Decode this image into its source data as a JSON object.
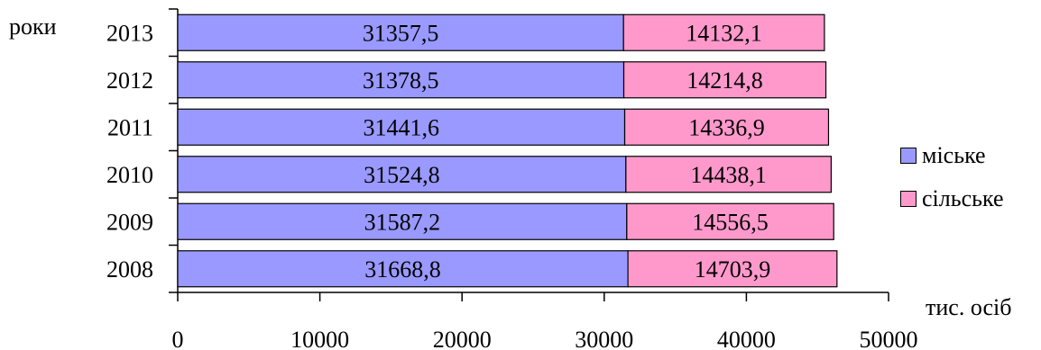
{
  "chart_data": {
    "type": "bar",
    "orientation": "horizontal",
    "stacked": true,
    "categories": [
      "2013",
      "2012",
      "2011",
      "2010",
      "2009",
      "2008"
    ],
    "series": [
      {
        "name": "міське",
        "color": "#9999ff",
        "values": [
          31357.5,
          31378.5,
          31441.6,
          31524.8,
          31587.2,
          31668.8
        ],
        "labels": [
          "31357,5",
          "31378,5",
          "31441,6",
          "31524,8",
          "31587,2",
          "31668,8"
        ]
      },
      {
        "name": "сільське",
        "color": "#ff99cc",
        "values": [
          14132.1,
          14214.8,
          14336.9,
          14438.1,
          14556.5,
          14703.9
        ],
        "labels": [
          "14132,1",
          "14214,8",
          "14336,9",
          "14438,1",
          "14556,5",
          "14703,9"
        ]
      }
    ],
    "xlabel": "тис. осіб",
    "ylabel": "роки",
    "xlim": [
      0,
      50000
    ],
    "xticks": [
      0,
      10000,
      20000,
      30000,
      40000,
      50000
    ],
    "grid": false,
    "legend_position": "right"
  }
}
